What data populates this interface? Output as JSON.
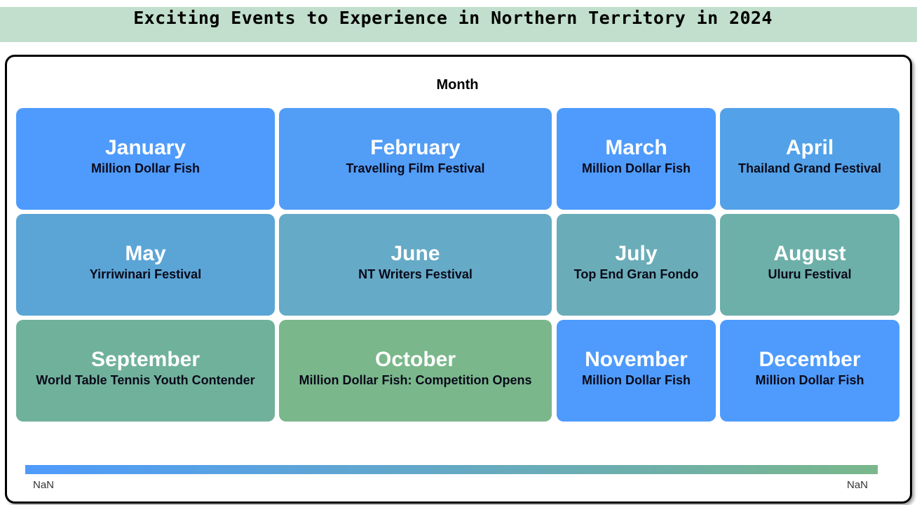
{
  "title": "Exciting Events to Experience in Northern Territory in 2024",
  "chart_data": {
    "type": "table",
    "header": "Month",
    "tiles": [
      {
        "month": "January",
        "event": "Million Dollar Fish",
        "color": "#4e9bfd"
      },
      {
        "month": "February",
        "event": "Travelling Film Festival",
        "color": "#529df6"
      },
      {
        "month": "March",
        "event": "Million Dollar Fish",
        "color": "#4e9bfd"
      },
      {
        "month": "April",
        "event": "Thailand Grand Festival",
        "color": "#53a1e8"
      },
      {
        "month": "May",
        "event": "Yirriwinari Festival",
        "color": "#5ba5d6"
      },
      {
        "month": "June",
        "event": "NT Writers Festival",
        "color": "#65aac6"
      },
      {
        "month": "July",
        "event": "Top End Gran Fondo",
        "color": "#6aadb8"
      },
      {
        "month": "August",
        "event": "Uluru Festival",
        "color": "#6dafa9"
      },
      {
        "month": "September",
        "event": "World Table Tennis Youth Contender",
        "color": "#70b19b"
      },
      {
        "month": "October",
        "event": "Million Dollar Fish: Competition Opens",
        "color": "#7ab78b"
      },
      {
        "month": "November",
        "event": "Million Dollar Fish",
        "color": "#4e9bfd"
      },
      {
        "month": "December",
        "event": "Million Dollar Fish",
        "color": "#4e9bfd"
      }
    ],
    "color_scale": {
      "min_label": "NaN",
      "max_label": "NaN",
      "colors": [
        "#4e9bfd",
        "#7ab78b"
      ]
    }
  }
}
